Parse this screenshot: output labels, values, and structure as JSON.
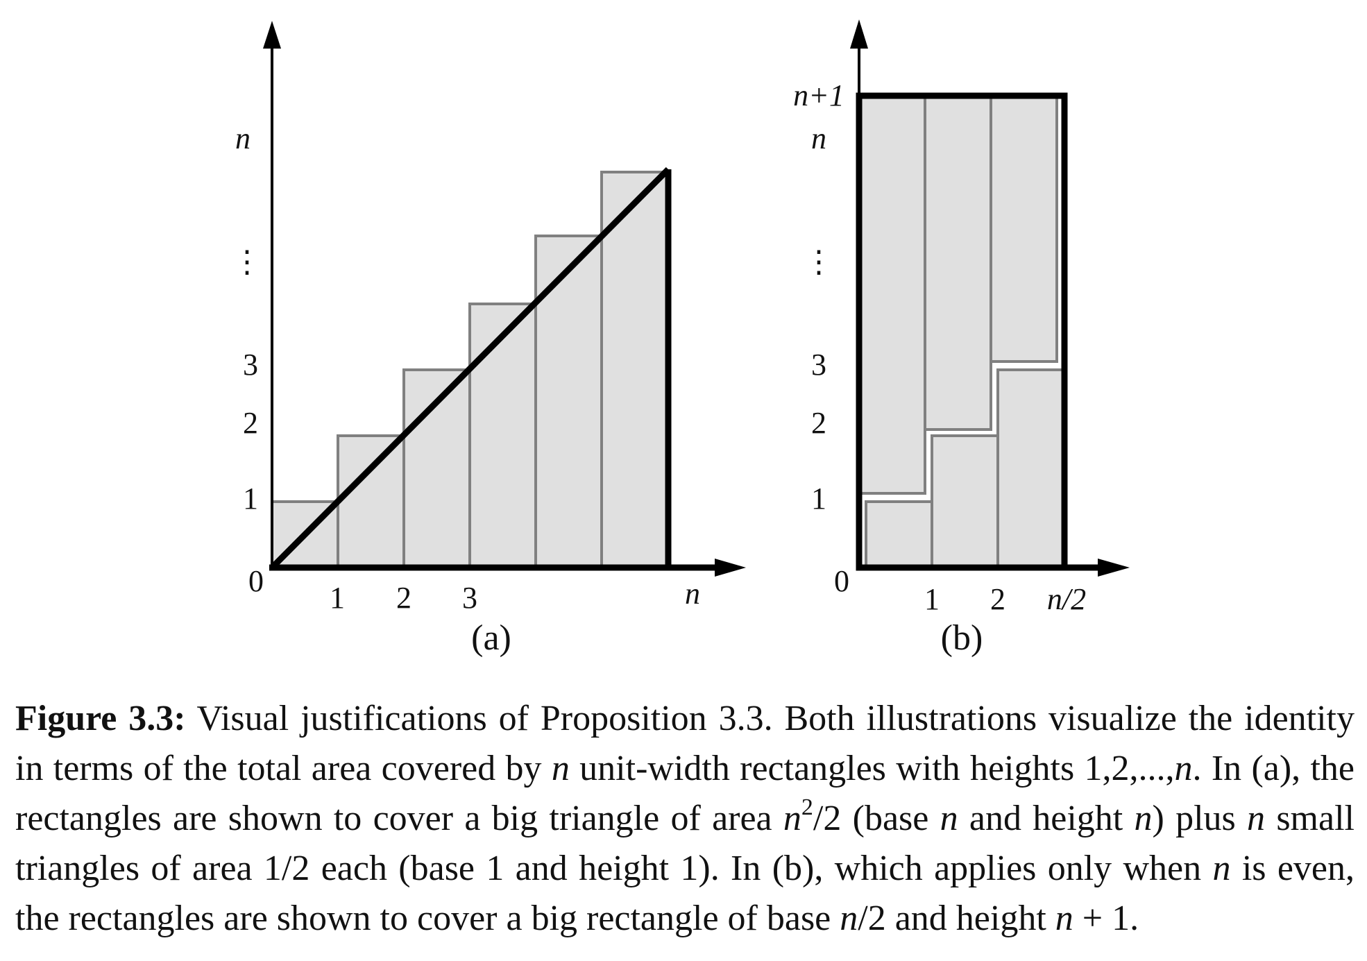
{
  "panel_a": {
    "y_tick_labels": {
      "zero": "0",
      "one": "1",
      "two": "2",
      "three": "3",
      "dots": "⋮",
      "n": "n"
    },
    "x_tick_labels": {
      "one": "1",
      "two": "2",
      "three": "3",
      "n": "n"
    },
    "sublabel": "(a)",
    "bar_heights": [
      1,
      2,
      3,
      4,
      5,
      6
    ]
  },
  "panel_b": {
    "y_tick_labels": {
      "zero": "0",
      "one": "1",
      "two": "2",
      "three": "3",
      "dots": "⋮",
      "n": "n",
      "n_plus_1": "n+1"
    },
    "x_tick_labels": {
      "one": "1",
      "two": "2",
      "n_half": "n/2"
    },
    "sublabel": "(b)"
  },
  "caption": {
    "label": "Figure 3.3:",
    "seg1": " Visual justifications of Proposition 3.3. Both illustrations visualize the identity in terms of the total area covered by ",
    "n1": "n",
    "seg2": " unit-width rectangles with heights 1,2,...,",
    "n2": "n",
    "seg3": ". In (a), the rectangles are shown to cover a big triangle of area ",
    "n3": "n",
    "sup2": "2",
    "seg4": "/2 (base ",
    "n4": "n",
    "seg5": " and height ",
    "n5": "n",
    "seg6": ") plus ",
    "n6": "n",
    "seg7": " small triangles of area 1/2 each (base 1 and height 1). In (b), which applies only when ",
    "n7": "n",
    "seg8": " is even, the rectangles are shown to cover a big rectangle of base ",
    "n8": "n",
    "seg9": "/2 and height ",
    "n9": "n",
    "seg10": " + 1."
  }
}
